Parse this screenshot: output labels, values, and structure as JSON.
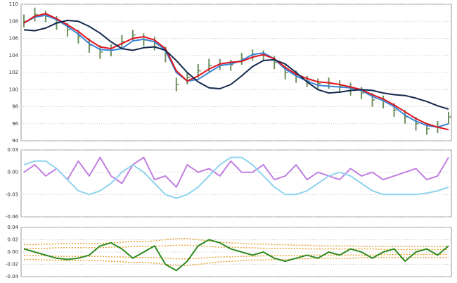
{
  "chart_data": [
    {
      "type": "ohlc",
      "color": "#6b8f5e",
      "grid": true,
      "ylim": [
        94,
        110
      ],
      "yticks": [
        94,
        96,
        98,
        100,
        102,
        104,
        106,
        108,
        110
      ],
      "high": [
        108.8,
        109.6,
        109.2,
        108.6,
        107.8,
        107.0,
        106.0,
        105.2,
        105.3,
        106.4,
        107.0,
        106.6,
        106.2,
        105.0,
        101.4,
        102.0,
        103.0,
        103.6,
        103.6,
        103.5,
        104.3,
        104.7,
        104.6,
        103.9,
        102.8,
        102.2,
        101.6,
        101.3,
        101.4,
        101.1,
        100.8,
        100.3,
        99.6,
        99.3,
        98.4,
        97.6,
        96.8,
        96.1,
        96.3,
        97.4
      ],
      "low": [
        107.3,
        108.0,
        107.9,
        107.0,
        106.2,
        105.4,
        104.3,
        103.6,
        103.9,
        104.9,
        105.7,
        105.1,
        104.6,
        103.2,
        99.8,
        100.6,
        101.4,
        102.1,
        102.3,
        102.2,
        102.9,
        103.4,
        103.3,
        102.4,
        101.2,
        100.8,
        100.3,
        100.0,
        100.1,
        99.6,
        99.3,
        98.9,
        98.0,
        97.8,
        96.8,
        96.0,
        95.2,
        94.7,
        94.9,
        96.0
      ],
      "close": [
        108.0,
        108.8,
        108.6,
        107.8,
        107.0,
        106.2,
        105.2,
        104.4,
        104.6,
        105.6,
        106.4,
        105.8,
        105.4,
        104.2,
        100.6,
        101.4,
        102.2,
        102.8,
        103.0,
        102.9,
        103.6,
        104.1,
        104.0,
        103.2,
        102.0,
        101.5,
        101.0,
        100.7,
        100.8,
        100.4,
        100.1,
        99.6,
        98.8,
        98.6,
        97.6,
        96.8,
        96.0,
        95.4,
        95.6,
        96.8
      ],
      "series": [
        {
          "color": "#3a86d8",
          "values": [
            107.8,
            108.5,
            108.7,
            108.2,
            107.4,
            106.5,
            105.4,
            104.7,
            104.6,
            104.8,
            105.7,
            105.9,
            105.6,
            104.6,
            102.0,
            101.0,
            101.2,
            102.0,
            102.8,
            103.0,
            103.4,
            104.1,
            104.3,
            103.6,
            102.4,
            101.6,
            101.0,
            100.5,
            100.4,
            100.3,
            100.2,
            99.9,
            99.2,
            98.7,
            98.0,
            97.0,
            96.3,
            95.8,
            95.6,
            96.0
          ]
        },
        {
          "color": "#e0141e",
          "values": [
            107.8,
            108.6,
            108.9,
            108.3,
            107.6,
            106.8,
            105.8,
            105.0,
            104.8,
            105.4,
            106.0,
            106.2,
            105.8,
            104.8,
            102.2,
            101.0,
            101.6,
            102.4,
            103.0,
            103.2,
            103.3,
            103.8,
            104.1,
            103.6,
            102.6,
            101.8,
            101.3,
            100.9,
            100.8,
            100.6,
            100.3,
            100.0,
            99.4,
            98.9,
            98.2,
            97.4,
            96.6,
            96.0,
            95.6,
            95.3
          ]
        },
        {
          "color": "#14284e",
          "values": [
            107.0,
            106.9,
            107.2,
            107.8,
            108.1,
            108.0,
            107.4,
            106.6,
            105.6,
            104.8,
            104.6,
            104.9,
            105.0,
            104.6,
            103.4,
            102.0,
            100.9,
            100.2,
            100.1,
            100.6,
            101.6,
            102.7,
            103.4,
            103.5,
            103.0,
            102.0,
            100.9,
            100.0,
            99.6,
            99.7,
            99.9,
            100.0,
            99.9,
            99.6,
            99.4,
            99.3,
            99.0,
            98.6,
            98.1,
            97.7
          ]
        }
      ]
    },
    {
      "type": "line",
      "grid": true,
      "ylim": [
        -0.06,
        0.03
      ],
      "yticks": [
        -0.06,
        -0.03,
        {
          "value": 0,
          "label": "0.00"
        },
        0.03
      ],
      "series": [
        {
          "color": "#c27ee0",
          "values": [
            0.0,
            0.01,
            -0.005,
            0.005,
            -0.01,
            0.015,
            -0.005,
            0.02,
            -0.005,
            -0.015,
            0.01,
            0.02,
            -0.01,
            -0.005,
            -0.02,
            0.01,
            0.0,
            0.005,
            -0.005,
            0.015,
            0.0,
            0.0,
            0.01,
            -0.01,
            -0.005,
            0.01,
            -0.01,
            0.0,
            -0.005,
            -0.01,
            0.005,
            -0.005,
            0.0,
            -0.01,
            -0.005,
            0.0,
            0.005,
            -0.01,
            -0.005,
            0.02
          ]
        },
        {
          "color": "#8fd3ee",
          "values": [
            0.01,
            0.015,
            0.015,
            0.005,
            -0.01,
            -0.025,
            -0.03,
            -0.025,
            -0.015,
            0.0,
            0.01,
            0.0,
            -0.015,
            -0.03,
            -0.035,
            -0.03,
            -0.02,
            -0.005,
            0.01,
            0.02,
            0.02,
            0.01,
            -0.005,
            -0.02,
            -0.03,
            -0.03,
            -0.025,
            -0.015,
            -0.005,
            0.0,
            -0.005,
            -0.015,
            -0.025,
            -0.03,
            -0.03,
            -0.03,
            -0.03,
            -0.028,
            -0.025,
            -0.02
          ]
        }
      ]
    },
    {
      "type": "line",
      "grid": true,
      "ylim": [
        -0.04,
        0.04
      ],
      "yticks": [
        -0.04,
        -0.02,
        {
          "value": 0,
          "label": "0.00"
        },
        0.02,
        0.04
      ],
      "series": [
        {
          "color": "#e8a43a",
          "dotted": true,
          "values": [
            0.012,
            0.012,
            0.013,
            0.013,
            0.014,
            0.014,
            0.014,
            0.014,
            0.015,
            0.016,
            0.017,
            0.017,
            0.018,
            0.02,
            0.022,
            0.022,
            0.02,
            0.018,
            0.016,
            0.015,
            0.014,
            0.013,
            0.013,
            0.012,
            0.012,
            0.011,
            0.011,
            0.01,
            0.01,
            0.01,
            0.01,
            0.009,
            0.009,
            0.009,
            0.009,
            0.009,
            0.009,
            0.009,
            0.009,
            0.009
          ]
        },
        {
          "color": "#e8a43a",
          "dotted": true,
          "values": [
            0.006,
            0.006,
            0.006,
            0.007,
            0.007,
            0.007,
            0.007,
            0.007,
            0.008,
            0.008,
            0.009,
            0.009,
            0.009,
            0.01,
            0.011,
            0.011,
            0.01,
            0.009,
            0.008,
            0.008,
            0.007,
            0.007,
            0.006,
            0.006,
            0.006,
            0.006,
            0.005,
            0.005,
            0.005,
            0.005,
            0.005,
            0.005,
            0.005,
            0.004,
            0.004,
            0.004,
            0.004,
            0.004,
            0.004,
            0.004
          ]
        },
        {
          "color": "#e8a43a",
          "dotted": true,
          "values": [
            -0.006,
            -0.006,
            -0.006,
            -0.007,
            -0.007,
            -0.007,
            -0.007,
            -0.007,
            -0.008,
            -0.008,
            -0.009,
            -0.009,
            -0.009,
            -0.01,
            -0.011,
            -0.011,
            -0.01,
            -0.009,
            -0.008,
            -0.008,
            -0.007,
            -0.007,
            -0.006,
            -0.006,
            -0.006,
            -0.006,
            -0.005,
            -0.005,
            -0.005,
            -0.005,
            -0.005,
            -0.005,
            -0.005,
            -0.004,
            -0.004,
            -0.004,
            -0.004,
            -0.004,
            -0.004,
            -0.004
          ]
        },
        {
          "color": "#e8a43a",
          "dotted": true,
          "values": [
            -0.012,
            -0.012,
            -0.013,
            -0.013,
            -0.014,
            -0.014,
            -0.014,
            -0.014,
            -0.015,
            -0.016,
            -0.017,
            -0.017,
            -0.018,
            -0.02,
            -0.022,
            -0.022,
            -0.02,
            -0.018,
            -0.016,
            -0.015,
            -0.014,
            -0.013,
            -0.013,
            -0.012,
            -0.012,
            -0.011,
            -0.011,
            -0.01,
            -0.01,
            -0.01,
            -0.01,
            -0.009,
            -0.009,
            -0.009,
            -0.009,
            -0.009,
            -0.009,
            -0.009,
            -0.009,
            -0.009
          ]
        },
        {
          "color": "#2e8b1e",
          "values": [
            0.005,
            0.0,
            -0.005,
            -0.01,
            -0.012,
            -0.01,
            -0.005,
            0.01,
            0.015,
            0.005,
            -0.01,
            0.0,
            0.01,
            -0.02,
            -0.03,
            -0.015,
            0.01,
            0.02,
            0.015,
            0.005,
            0.0,
            -0.005,
            0.0,
            -0.01,
            -0.015,
            -0.01,
            -0.005,
            -0.01,
            0.0,
            -0.005,
            0.005,
            0.0,
            -0.01,
            0.0,
            0.005,
            -0.015,
            0.0,
            0.005,
            -0.005,
            0.01
          ]
        }
      ]
    }
  ]
}
